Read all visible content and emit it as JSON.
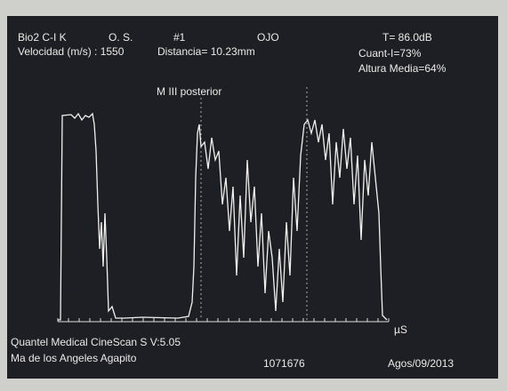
{
  "header": {
    "model": "Bio2 C-I K",
    "eye": "O. S.",
    "number": "#1",
    "mode": "OJO",
    "gain": "T= 86.0dB",
    "velocity": "Velocidad (m/s) : 1550",
    "distance": "Distancia= 10.23mm",
    "quant": "Cuant-I=73%",
    "height": "Altura Media=64%"
  },
  "scan": {
    "marker_label": "M III posterior",
    "axis_unit": "µS"
  },
  "footer": {
    "device": "Quantel Medical CineScan S V:5.05",
    "patient": "Ma de los Angeles Agapito",
    "id": "1071676",
    "date": "Agos/09/2013"
  }
}
